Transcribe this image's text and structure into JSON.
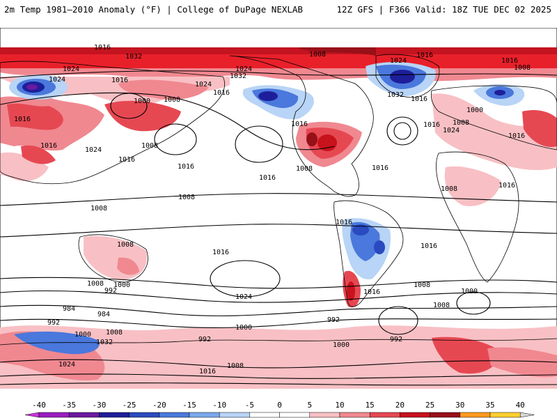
{
  "header": {
    "left_title": "2m Temp 1981–2010 Anomaly (°F) | College of DuPage NEXLAB",
    "right_title": "12Z GFS | F366 Valid: 18Z TUE DEC 02 2025"
  },
  "map": {
    "variable": "2m temperature anomaly",
    "units": "°F",
    "contour_field": "mean sea level pressure",
    "isobar_labels": [
      "1016",
      "1032",
      "1008",
      "1024",
      "1024",
      "1024",
      "1016",
      "1008",
      "1032",
      "1000",
      "1016",
      "1024",
      "1016",
      "1008",
      "1016",
      "1016",
      "1016",
      "1024",
      "1016",
      "1032",
      "1016",
      "1024",
      "1008",
      "1016",
      "1016",
      "1000",
      "1008",
      "1016",
      "1024",
      "1008",
      "1016",
      "1016",
      "1008",
      "1016",
      "1008",
      "1008",
      "1016",
      "1016",
      "1008",
      "1000",
      "992",
      "984",
      "984",
      "992",
      "1016",
      "1024",
      "1008",
      "1000",
      "1016",
      "1016",
      "1008",
      "1008",
      "1000",
      "992",
      "992",
      "1000",
      "1008",
      "1032",
      "992",
      "1000",
      "1024",
      "1008",
      "1016"
    ],
    "features": [
      {
        "name": "warm-anomaly-arctic",
        "color": "#e8202a"
      },
      {
        "name": "cold-anomaly-west-canada",
        "color": "#3c5cd0"
      },
      {
        "name": "cold-anomaly-greenland",
        "color": "#2a48c8"
      },
      {
        "name": "cold-anomaly-south-america",
        "color": "#5a8ae0"
      },
      {
        "name": "warm-anomaly-eastern-us",
        "color": "#c41420"
      },
      {
        "name": "cold-anomaly-northwest-asia",
        "color": "#6a2ac0"
      }
    ]
  },
  "legend": {
    "ticks": [
      "-40",
      "-35",
      "-30",
      "-25",
      "-20",
      "-15",
      "-10",
      "-5",
      "0",
      "5",
      "10",
      "15",
      "20",
      "25",
      "30",
      "35",
      "40"
    ],
    "colors": [
      "#cc33dd",
      "#9a1ec0",
      "#6a1aa0",
      "#1e1e9a",
      "#2a4ac0",
      "#4a78dc",
      "#7aa8ec",
      "#b8d4f6",
      "#ffffff",
      "#ffffff",
      "#f8c0c4",
      "#f08890",
      "#e64852",
      "#c8121c",
      "#981018",
      "#ff9a1e",
      "#ffd030",
      "#d8d8d8"
    ]
  }
}
